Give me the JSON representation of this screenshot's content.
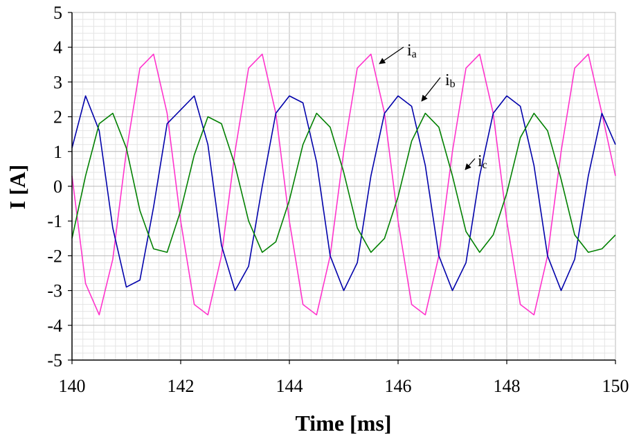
{
  "chart_data": {
    "type": "line",
    "xlabel": "Time [ms]",
    "ylabel": "I [A]",
    "xlim": [
      140,
      150
    ],
    "ylim": [
      -5,
      5
    ],
    "x_ticks": [
      "140",
      "142",
      "144",
      "146",
      "148",
      "150"
    ],
    "y_ticks": [
      "5",
      "4",
      "3",
      "2",
      "1",
      "0",
      "-1",
      "-2",
      "-3",
      "-4",
      "-5"
    ],
    "grid": true,
    "series": [
      {
        "name": "ia",
        "label_main": "i",
        "label_sub": "a",
        "color": "#ff33cc",
        "x": [
          140.0,
          140.25,
          140.5,
          140.75,
          141.0,
          141.25,
          141.5,
          141.75,
          142.0,
          142.25,
          142.5,
          142.75,
          143.0,
          143.25,
          143.5,
          143.75,
          144.0,
          144.25,
          144.5,
          144.75,
          145.0,
          145.25,
          145.5,
          145.75,
          146.0,
          146.25,
          146.5,
          146.75,
          147.0,
          147.25,
          147.5,
          147.75,
          148.0,
          148.25,
          148.5,
          148.75,
          149.0,
          149.25,
          149.5,
          149.75,
          150.0
        ],
        "y": [
          0.3,
          -2.8,
          -3.7,
          -2.1,
          1.0,
          3.4,
          3.8,
          2.1,
          -1.0,
          -3.4,
          -3.7,
          -2.0,
          1.0,
          3.4,
          3.8,
          2.1,
          -1.0,
          -3.4,
          -3.7,
          -2.0,
          1.0,
          3.4,
          3.8,
          2.1,
          -1.0,
          -3.4,
          -3.7,
          -2.0,
          1.0,
          3.4,
          3.8,
          2.1,
          -1.0,
          -3.4,
          -3.7,
          -2.0,
          1.0,
          3.4,
          3.8,
          2.1,
          0.3
        ]
      },
      {
        "name": "ib",
        "label_main": "i",
        "label_sub": "b",
        "color": "#0000aa",
        "x": [
          140.0,
          140.25,
          140.5,
          140.75,
          141.0,
          141.25,
          141.5,
          141.75,
          142.0,
          142.25,
          142.5,
          142.75,
          143.0,
          143.25,
          143.5,
          143.75,
          144.0,
          144.25,
          144.5,
          144.75,
          145.0,
          145.25,
          145.5,
          145.75,
          146.0,
          146.25,
          146.5,
          146.75,
          147.0,
          147.25,
          147.5,
          147.75,
          148.0,
          148.25,
          148.5,
          148.75,
          149.0,
          149.25,
          149.5,
          149.75,
          150.0
        ],
        "y": [
          1.1,
          2.6,
          1.6,
          -1.2,
          -2.9,
          -2.7,
          -0.6,
          1.8,
          2.2,
          2.6,
          1.2,
          -1.7,
          -3.0,
          -2.3,
          0.0,
          2.1,
          2.6,
          2.4,
          0.7,
          -2.0,
          -3.0,
          -2.2,
          0.3,
          2.1,
          2.6,
          2.3,
          0.6,
          -2.0,
          -3.0,
          -2.2,
          0.3,
          2.1,
          2.6,
          2.3,
          0.6,
          -2.0,
          -3.0,
          -2.1,
          0.3,
          2.1,
          1.2
        ]
      },
      {
        "name": "ic",
        "label_main": "i",
        "label_sub": "c",
        "color": "#008000",
        "x": [
          140.0,
          140.25,
          140.5,
          140.75,
          141.0,
          141.25,
          141.5,
          141.75,
          142.0,
          142.25,
          142.5,
          142.75,
          143.0,
          143.25,
          143.5,
          143.75,
          144.0,
          144.25,
          144.5,
          144.75,
          145.0,
          145.25,
          145.5,
          145.75,
          146.0,
          146.25,
          146.5,
          146.75,
          147.0,
          147.25,
          147.5,
          147.75,
          148.0,
          148.25,
          148.5,
          148.75,
          149.0,
          149.25,
          149.5,
          149.75,
          150.0
        ],
        "y": [
          -1.5,
          0.3,
          1.8,
          2.1,
          1.1,
          -0.7,
          -1.8,
          -1.9,
          -0.7,
          0.9,
          2.0,
          1.8,
          0.6,
          -1.0,
          -1.9,
          -1.6,
          -0.4,
          1.2,
          2.1,
          1.7,
          0.4,
          -1.2,
          -1.9,
          -1.5,
          -0.3,
          1.3,
          2.1,
          1.7,
          0.3,
          -1.3,
          -1.9,
          -1.4,
          -0.2,
          1.4,
          2.1,
          1.6,
          0.2,
          -1.4,
          -1.9,
          -1.8,
          -1.4
        ]
      }
    ]
  }
}
